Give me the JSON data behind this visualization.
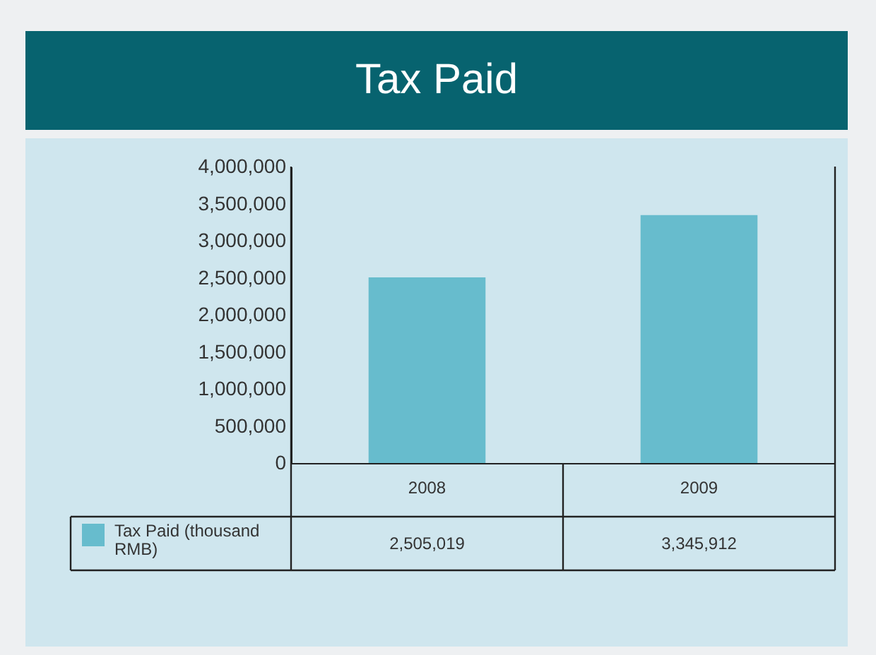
{
  "chart_data": {
    "type": "bar",
    "title": "Tax Paid",
    "categories": [
      "2008",
      "2009"
    ],
    "series": [
      {
        "name": "Tax Paid (thousand RMB)",
        "color": "#67bccd",
        "values": [
          2505019,
          3345912
        ],
        "value_labels": [
          "2,505,019",
          "3,345,912"
        ]
      }
    ],
    "ylim": [
      0,
      4000000
    ],
    "yticks": [
      0,
      {
        "value": 500000,
        "label": "500,000"
      },
      {
        "value": 1000000,
        "label": "1,000,000"
      },
      {
        "value": 1500000,
        "label": "1,500,000"
      },
      {
        "value": 2000000,
        "label": "2,000,000"
      },
      {
        "value": 2500000,
        "label": "2,500,000"
      },
      {
        "value": 3000000,
        "label": "3,000,000"
      },
      {
        "value": 3500000,
        "label": "3,500,000"
      },
      {
        "value": 4000000,
        "label": "4,000,000"
      }
    ],
    "legend": "bottom left",
    "grid": false
  }
}
